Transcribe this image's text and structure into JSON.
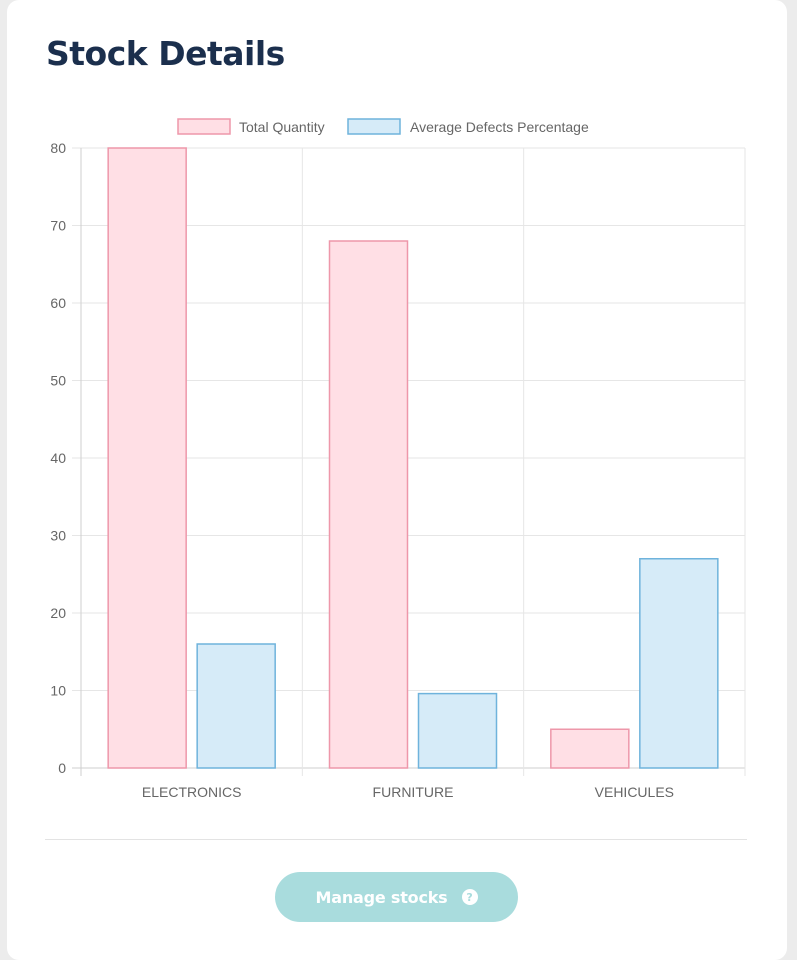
{
  "page": {
    "title": "Stock Details"
  },
  "actions": {
    "manage_label": "Manage stocks",
    "help_icon": "help-circle-icon",
    "help_glyph": "?"
  },
  "colors": {
    "total_fill": "#ffdfe5",
    "total_stroke": "#ee97aa",
    "defects_fill": "#d6ebf8",
    "defects_stroke": "#6fb3dc",
    "button_bg": "#a9dcdd",
    "title_color": "#1b2f4d"
  },
  "chart_data": {
    "type": "bar",
    "categories": [
      "ELECTRONICS",
      "FURNITURE",
      "VEHICULES"
    ],
    "series": [
      {
        "name": "Total Quantity",
        "values": [
          80,
          68,
          5
        ]
      },
      {
        "name": "Average Defects Percentage",
        "values": [
          16,
          9.6,
          27
        ]
      }
    ],
    "ylim": [
      0,
      80
    ],
    "yticks": [
      0,
      10,
      20,
      30,
      40,
      50,
      60,
      70,
      80
    ],
    "legend": "top-center",
    "grid": true,
    "title": "",
    "xlabel": "",
    "ylabel": ""
  }
}
